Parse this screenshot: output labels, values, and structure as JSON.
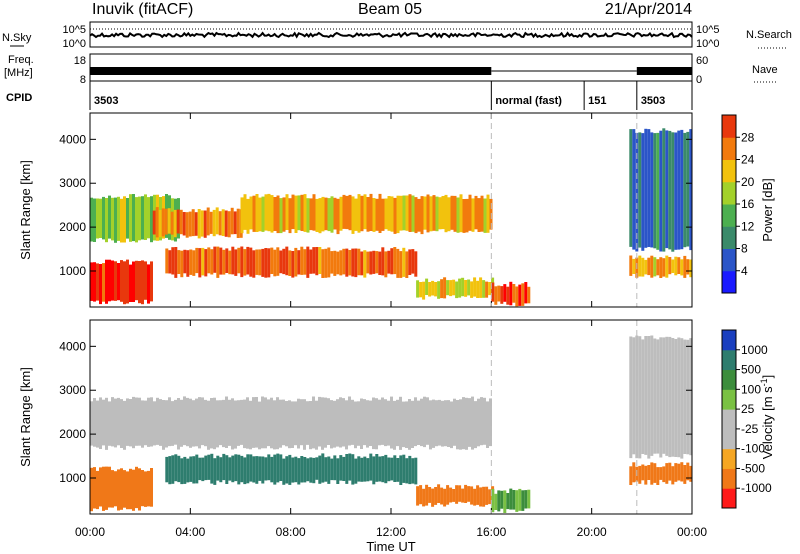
{
  "header": {
    "station": "Inuvik (fitACF)",
    "beam": "Beam 05",
    "date": "21/Apr/2014"
  },
  "summary": {
    "nsky_label": "N.Sky",
    "nsearch_label": "N.Search",
    "freq_label_1": "Freq.",
    "freq_label_2": "[MHz]",
    "nave_label": "Nave",
    "cpid_label": "CPID",
    "left_top_tick": "10^5",
    "left_bottom_tick": "10^0",
    "right_top_tick": "10^5",
    "right_bottom_tick": "10^0",
    "freq_ticks": [
      "18",
      "8"
    ],
    "nave_ticks": [
      "60",
      "0"
    ],
    "cpid_segments": [
      {
        "start_hour": 0.0,
        "end_hour": 16.0,
        "label": "3503"
      },
      {
        "start_hour": 16.0,
        "end_hour": 19.7,
        "label": "normal (fast)"
      },
      {
        "start_hour": 19.7,
        "end_hour": 21.8,
        "label": "151"
      },
      {
        "start_hour": 21.8,
        "end_hour": 24.0,
        "label": "3503"
      }
    ]
  },
  "colors": {
    "power_scale": [
      "#1a1aff",
      "#2b55c8",
      "#3a8a6a",
      "#4caf50",
      "#a3d12a",
      "#f2c20d",
      "#f27a0d",
      "#e8380d",
      "#ff0000"
    ],
    "velocity_scale": [
      "#1a3fbf",
      "#2e7d6e",
      "#3c8d3c",
      "#7ac143",
      "#bdbdbd",
      "#bdbdbd",
      "#f5a623",
      "#f07818",
      "#ff1a1a"
    ]
  },
  "chart_data": [
    {
      "type": "heatmap",
      "name": "power",
      "ylabel": "Slant Range [km]",
      "xlabel": "Time UT",
      "xlim_hours": [
        0,
        24
      ],
      "ylim_km": [
        180,
        4600
      ],
      "y_ticks": [
        1000,
        2000,
        3000,
        4000
      ],
      "x_tick_labels": [
        "00:00",
        "04:00",
        "08:00",
        "12:00",
        "16:00",
        "20:00",
        "00:00"
      ],
      "colorbar": {
        "label": "Power [dB]",
        "ticks": [
          "4",
          "8",
          "12",
          "16",
          "20",
          "24",
          "28"
        ],
        "range": [
          0,
          30
        ]
      },
      "bands": [
        {
          "start_hour": 0.0,
          "end_hour": 2.5,
          "range_lo": 300,
          "range_hi": 1200,
          "value": 28
        },
        {
          "start_hour": 0.0,
          "end_hour": 3.5,
          "range_lo": 1700,
          "range_hi": 2700,
          "value": 14
        },
        {
          "start_hour": 2.5,
          "end_hour": 6.0,
          "range_lo": 1800,
          "range_hi": 2400,
          "value": 22
        },
        {
          "start_hour": 3.0,
          "end_hour": 13.0,
          "range_lo": 900,
          "range_hi": 1500,
          "value": 24
        },
        {
          "start_hour": 6.0,
          "end_hour": 16.0,
          "range_lo": 1900,
          "range_hi": 2700,
          "value": 20
        },
        {
          "start_hour": 13.0,
          "end_hour": 16.0,
          "range_lo": 400,
          "range_hi": 800,
          "value": 18
        },
        {
          "start_hour": 16.0,
          "end_hour": 17.5,
          "range_lo": 250,
          "range_hi": 700,
          "value": 26
        },
        {
          "start_hour": 21.5,
          "end_hour": 24.0,
          "range_lo": 900,
          "range_hi": 1300,
          "value": 20
        },
        {
          "start_hour": 21.5,
          "end_hour": 24.0,
          "range_lo": 1500,
          "range_hi": 4200,
          "value": 6
        }
      ]
    },
    {
      "type": "heatmap",
      "name": "velocity",
      "ylabel": "Slant Range [km]",
      "xlabel": "Time UT",
      "xlim_hours": [
        0,
        24
      ],
      "ylim_km": [
        180,
        4600
      ],
      "y_ticks": [
        1000,
        2000,
        3000,
        4000
      ],
      "x_tick_labels": [
        "00:00",
        "04:00",
        "08:00",
        "12:00",
        "16:00",
        "20:00",
        "00:00"
      ],
      "colorbar": {
        "label": "Velocity [m s",
        "label_sup": "-1",
        "label_end": "]",
        "ticks": [
          "1000",
          "500",
          "100",
          "25",
          "-25",
          "-100",
          "-500",
          "-1000"
        ]
      },
      "bands": [
        {
          "start_hour": 0.0,
          "end_hour": 2.5,
          "range_lo": 300,
          "range_hi": 1200,
          "value": -300
        },
        {
          "start_hour": 0.0,
          "end_hour": 16.0,
          "range_lo": 1700,
          "range_hi": 2800,
          "value": 0
        },
        {
          "start_hour": 3.0,
          "end_hour": 13.0,
          "range_lo": 900,
          "range_hi": 1500,
          "value": 150
        },
        {
          "start_hour": 13.0,
          "end_hour": 16.0,
          "range_lo": 400,
          "range_hi": 800,
          "value": -150
        },
        {
          "start_hour": 16.0,
          "end_hour": 17.5,
          "range_lo": 250,
          "range_hi": 700,
          "value": 60
        },
        {
          "start_hour": 21.5,
          "end_hour": 24.0,
          "range_lo": 900,
          "range_hi": 1300,
          "value": -200
        },
        {
          "start_hour": 21.5,
          "end_hour": 24.0,
          "range_lo": 1500,
          "range_hi": 4200,
          "value": 0
        }
      ]
    }
  ]
}
